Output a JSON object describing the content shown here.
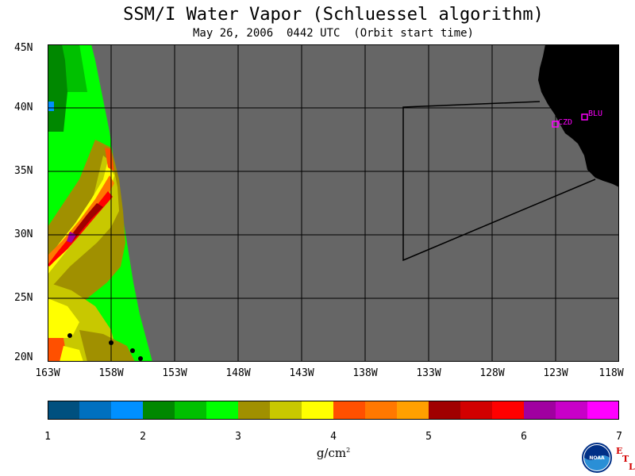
{
  "header": {
    "title": "SSM/I Water Vapor (Schluessel algorithm)",
    "subtitle": "May 26, 2006  0442 UTC  (Orbit start time)"
  },
  "map": {
    "lat_labels": [
      "45N",
      "40N",
      "35N",
      "30N",
      "25N",
      "20N"
    ],
    "lon_labels": [
      "163W",
      "158W",
      "153W",
      "148W",
      "143W",
      "138W",
      "133W",
      "128W",
      "123W",
      "118W"
    ],
    "lat_range": [
      20,
      45
    ],
    "lon_range": [
      -163,
      -118
    ],
    "station_labels": [
      "CZD",
      "BLU"
    ],
    "colors": {
      "nodata": "#666666",
      "land": "#000000",
      "station": "#ff00ff"
    }
  },
  "colorbar": {
    "ticks": [
      "1",
      "2",
      "3",
      "4",
      "5",
      "6",
      "7"
    ],
    "unit_text": "g/cm",
    "unit_sup": "2",
    "colors": [
      "#00507f",
      "#0070c0",
      "#0090ff",
      "#008800",
      "#00c000",
      "#00ff00",
      "#a09000",
      "#c8c800",
      "#ffff00",
      "#ff5000",
      "#ff7800",
      "#ffa000",
      "#a00000",
      "#d20000",
      "#ff0000",
      "#a000a0",
      "#c800c8",
      "#ff00ff"
    ]
  },
  "logo": {
    "text": "NOAA",
    "etl_letters": [
      "E",
      "T",
      "L"
    ]
  }
}
